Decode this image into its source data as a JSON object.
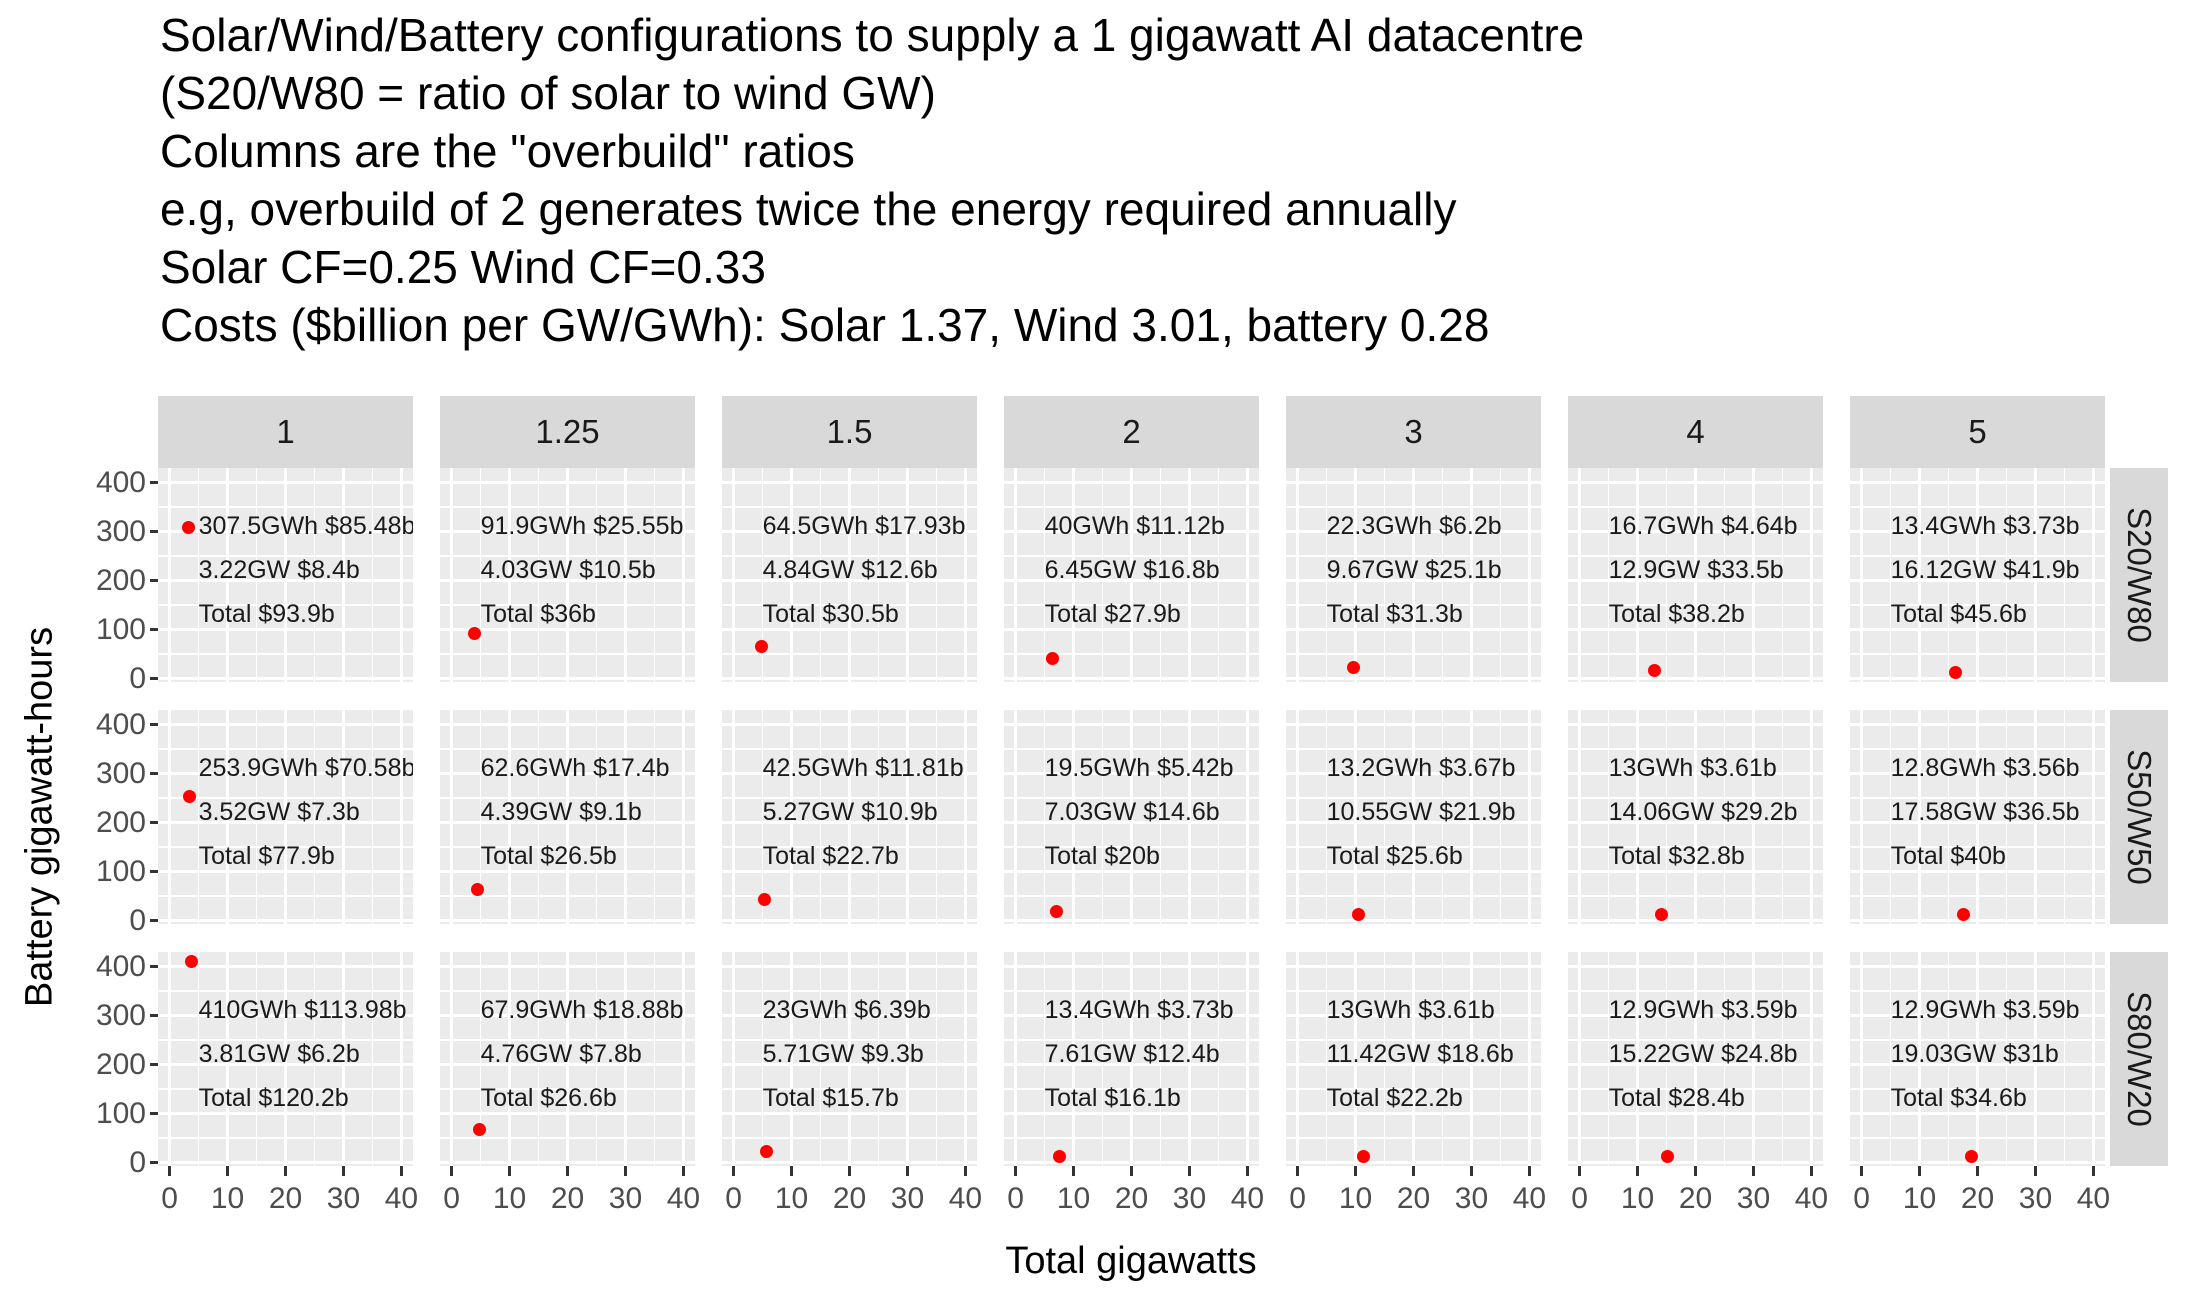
{
  "title_lines": [
    "Solar/Wind/Battery configurations to supply a 1 gigawatt AI datacentre",
    "(S20/W80 = ratio of solar to wind GW)",
    "Columns are the \"overbuild\" ratios",
    "e.g, overbuild of 2 generates twice the energy required annually",
    "Solar CF=0.25 Wind CF=0.33",
    "Costs ($billion per GW/GWh): Solar 1.37, Wind 3.01, battery 0.28"
  ],
  "axes": {
    "x_title": "Total gigawatts",
    "y_title": "Battery gigawatt-hours"
  },
  "colors": {
    "point": "#ff0000",
    "panel_bg": "#ebebeb",
    "strip_bg": "#d9d9d9",
    "grid": "#ffffff",
    "axis_text": "#4d4d4d",
    "tick_mark": "#333333",
    "text": "#000000"
  },
  "chart_data": {
    "type": "scatter",
    "title": "Solar/Wind/Battery configurations to supply a 1 gigawatt AI datacentre",
    "xlabel": "Total gigawatts",
    "ylabel": "Battery gigawatt-hours",
    "facet_col_labels": [
      "1",
      "1.25",
      "1.5",
      "2",
      "3",
      "4",
      "5"
    ],
    "facet_row_labels": [
      "S20/W80",
      "S50/W50",
      "S80/W20"
    ],
    "x_ticks": [
      0,
      10,
      20,
      30,
      40
    ],
    "y_ticks": [
      400,
      300,
      200,
      100,
      0
    ],
    "x_range": [
      -2,
      42
    ],
    "y_range": [
      -7,
      430
    ],
    "annotation_x": 5,
    "annotation_y": [
      310,
      220,
      130
    ],
    "points": [
      {
        "row": "S20/W80",
        "col": "1",
        "gw": 3.22,
        "gwh": 307.5,
        "lines": [
          "307.5GWh $85.48b",
          "3.22GW $8.4b",
          "Total $93.9b"
        ]
      },
      {
        "row": "S20/W80",
        "col": "1.25",
        "gw": 4.03,
        "gwh": 91.9,
        "lines": [
          "91.9GWh $25.55b",
          "4.03GW $10.5b",
          "Total $36b"
        ]
      },
      {
        "row": "S20/W80",
        "col": "1.5",
        "gw": 4.84,
        "gwh": 64.5,
        "lines": [
          "64.5GWh $17.93b",
          "4.84GW $12.6b",
          "Total $30.5b"
        ]
      },
      {
        "row": "S20/W80",
        "col": "2",
        "gw": 6.45,
        "gwh": 40,
        "lines": [
          "40GWh $11.12b",
          "6.45GW $16.8b",
          "Total $27.9b"
        ]
      },
      {
        "row": "S20/W80",
        "col": "3",
        "gw": 9.67,
        "gwh": 22.3,
        "lines": [
          "22.3GWh $6.2b",
          "9.67GW $25.1b",
          "Total $31.3b"
        ]
      },
      {
        "row": "S20/W80",
        "col": "4",
        "gw": 12.9,
        "gwh": 16.7,
        "lines": [
          "16.7GWh $4.64b",
          "12.9GW $33.5b",
          "Total $38.2b"
        ]
      },
      {
        "row": "S20/W80",
        "col": "5",
        "gw": 16.12,
        "gwh": 13.4,
        "lines": [
          "13.4GWh $3.73b",
          "16.12GW $41.9b",
          "Total $45.6b"
        ]
      },
      {
        "row": "S50/W50",
        "col": "1",
        "gw": 3.52,
        "gwh": 253.9,
        "lines": [
          "253.9GWh $70.58b",
          "3.52GW $7.3b",
          "Total $77.9b"
        ]
      },
      {
        "row": "S50/W50",
        "col": "1.25",
        "gw": 4.39,
        "gwh": 62.6,
        "lines": [
          "62.6GWh $17.4b",
          "4.39GW $9.1b",
          "Total $26.5b"
        ]
      },
      {
        "row": "S50/W50",
        "col": "1.5",
        "gw": 5.27,
        "gwh": 42.5,
        "lines": [
          "42.5GWh $11.81b",
          "5.27GW $10.9b",
          "Total $22.7b"
        ]
      },
      {
        "row": "S50/W50",
        "col": "2",
        "gw": 7.03,
        "gwh": 19.5,
        "lines": [
          "19.5GWh $5.42b",
          "7.03GW $14.6b",
          "Total $20b"
        ]
      },
      {
        "row": "S50/W50",
        "col": "3",
        "gw": 10.55,
        "gwh": 13.2,
        "lines": [
          "13.2GWh $3.67b",
          "10.55GW $21.9b",
          "Total $25.6b"
        ]
      },
      {
        "row": "S50/W50",
        "col": "4",
        "gw": 14.06,
        "gwh": 13,
        "lines": [
          "13GWh $3.61b",
          "14.06GW $29.2b",
          "Total $32.8b"
        ]
      },
      {
        "row": "S50/W50",
        "col": "5",
        "gw": 17.58,
        "gwh": 12.8,
        "lines": [
          "12.8GWh $3.56b",
          "17.58GW $36.5b",
          "Total $40b"
        ]
      },
      {
        "row": "S80/W20",
        "col": "1",
        "gw": 3.81,
        "gwh": 410,
        "lines": [
          "410GWh $113.98b",
          "3.81GW $6.2b",
          "Total $120.2b"
        ]
      },
      {
        "row": "S80/W20",
        "col": "1.25",
        "gw": 4.76,
        "gwh": 67.9,
        "lines": [
          "67.9GWh $18.88b",
          "4.76GW $7.8b",
          "Total $26.6b"
        ]
      },
      {
        "row": "S80/W20",
        "col": "1.5",
        "gw": 5.71,
        "gwh": 23,
        "lines": [
          "23GWh $6.39b",
          "5.71GW $9.3b",
          "Total $15.7b"
        ]
      },
      {
        "row": "S80/W20",
        "col": "2",
        "gw": 7.61,
        "gwh": 13.4,
        "lines": [
          "13.4GWh $3.73b",
          "7.61GW $12.4b",
          "Total $16.1b"
        ]
      },
      {
        "row": "S80/W20",
        "col": "3",
        "gw": 11.42,
        "gwh": 13,
        "lines": [
          "13GWh $3.61b",
          "11.42GW $18.6b",
          "Total $22.2b"
        ]
      },
      {
        "row": "S80/W20",
        "col": "4",
        "gw": 15.22,
        "gwh": 12.9,
        "lines": [
          "12.9GWh $3.59b",
          "15.22GW $24.8b",
          "Total $28.4b"
        ]
      },
      {
        "row": "S80/W20",
        "col": "5",
        "gw": 19.03,
        "gwh": 12.9,
        "lines": [
          "12.9GWh $3.59b",
          "19.03GW $31b",
          "Total $34.6b"
        ]
      }
    ]
  }
}
